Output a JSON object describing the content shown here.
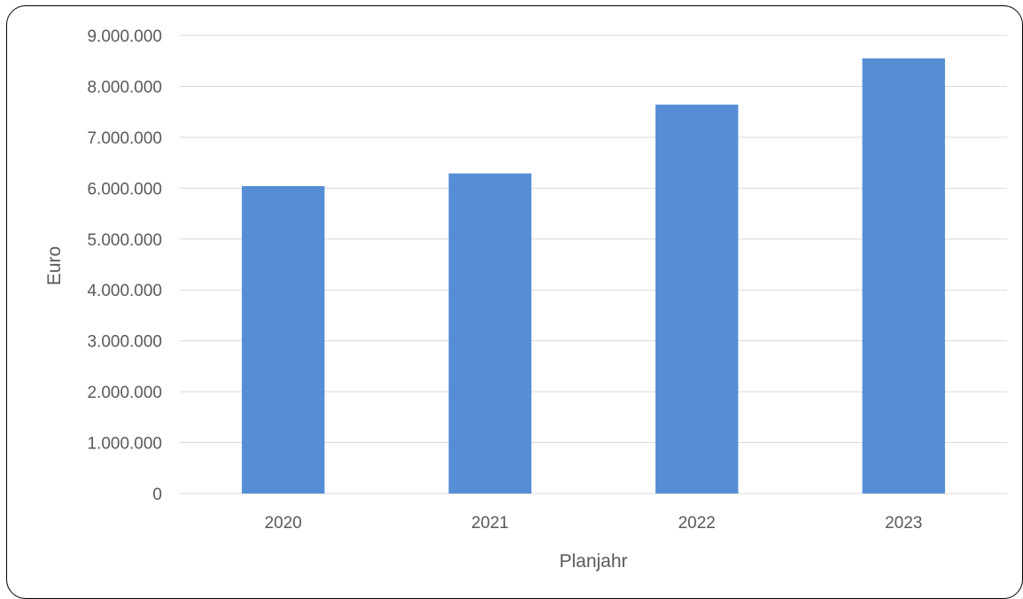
{
  "chart_data": {
    "type": "bar",
    "categories": [
      "2020",
      "2021",
      "2022",
      "2023"
    ],
    "series": [
      {
        "values": [
          6040000,
          6290000,
          7640000,
          8550000
        ]
      }
    ],
    "title": "",
    "xlabel": "Planjahr",
    "ylabel": "Euro",
    "ylim": [
      0,
      9000000
    ],
    "yticks": [
      0,
      1000000,
      2000000,
      3000000,
      4000000,
      5000000,
      6000000,
      7000000,
      8000000,
      9000000
    ],
    "ytick_labels": [
      "0",
      "1.000.000",
      "2.000.000",
      "3.000.000",
      "4.000.000",
      "5.000.000",
      "6.000.000",
      "7.000.000",
      "8.000.000",
      "9.000.000"
    ],
    "grid": true,
    "legend": "none",
    "colors": {
      "bar": "#558ED5",
      "grid": "#D9D9D9",
      "text": "#595959"
    }
  }
}
